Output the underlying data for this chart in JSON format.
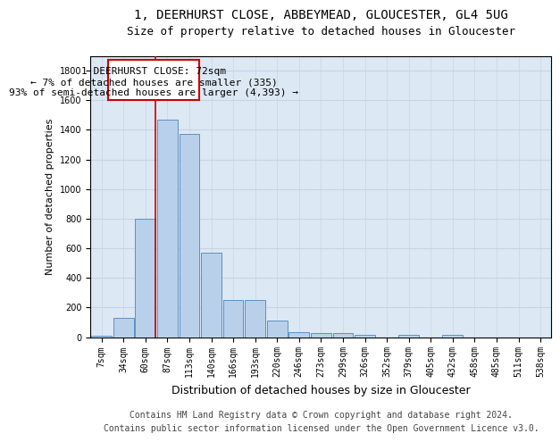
{
  "title1": "1, DEERHURST CLOSE, ABBEYMEAD, GLOUCESTER, GL4 5UG",
  "title2": "Size of property relative to detached houses in Gloucester",
  "xlabel": "Distribution of detached houses by size in Gloucester",
  "ylabel": "Number of detached properties",
  "bin_labels": [
    "7sqm",
    "34sqm",
    "60sqm",
    "87sqm",
    "113sqm",
    "140sqm",
    "166sqm",
    "193sqm",
    "220sqm",
    "246sqm",
    "273sqm",
    "299sqm",
    "326sqm",
    "352sqm",
    "379sqm",
    "405sqm",
    "432sqm",
    "458sqm",
    "485sqm",
    "511sqm",
    "538sqm"
  ],
  "bar_values": [
    10,
    130,
    800,
    1470,
    1370,
    570,
    250,
    250,
    110,
    35,
    30,
    30,
    18,
    0,
    18,
    0,
    18,
    0,
    0,
    0,
    0
  ],
  "bar_color": "#b8d0ea",
  "bar_edge_color": "#6090c0",
  "ylim": [
    0,
    1900
  ],
  "yticks": [
    0,
    200,
    400,
    600,
    800,
    1000,
    1200,
    1400,
    1600,
    1800
  ],
  "grid_color": "#c8d4e4",
  "background_color": "#dce8f4",
  "footer_line1": "Contains HM Land Registry data © Crown copyright and database right 2024.",
  "footer_line2": "Contains public sector information licensed under the Open Government Licence v3.0.",
  "red_line_color": "#cc0000",
  "box_edge_color": "#cc0000",
  "annotation_line1": "1 DEERHURST CLOSE: 72sqm",
  "annotation_line2": "← 7% of detached houses are smaller (335)",
  "annotation_line3": "93% of semi-detached houses are larger (4,393) →",
  "title_fontsize": 10,
  "subtitle_fontsize": 9,
  "tick_fontsize": 7,
  "ylabel_fontsize": 8,
  "xlabel_fontsize": 9,
  "annotation_fontsize": 8,
  "footer_fontsize": 7
}
